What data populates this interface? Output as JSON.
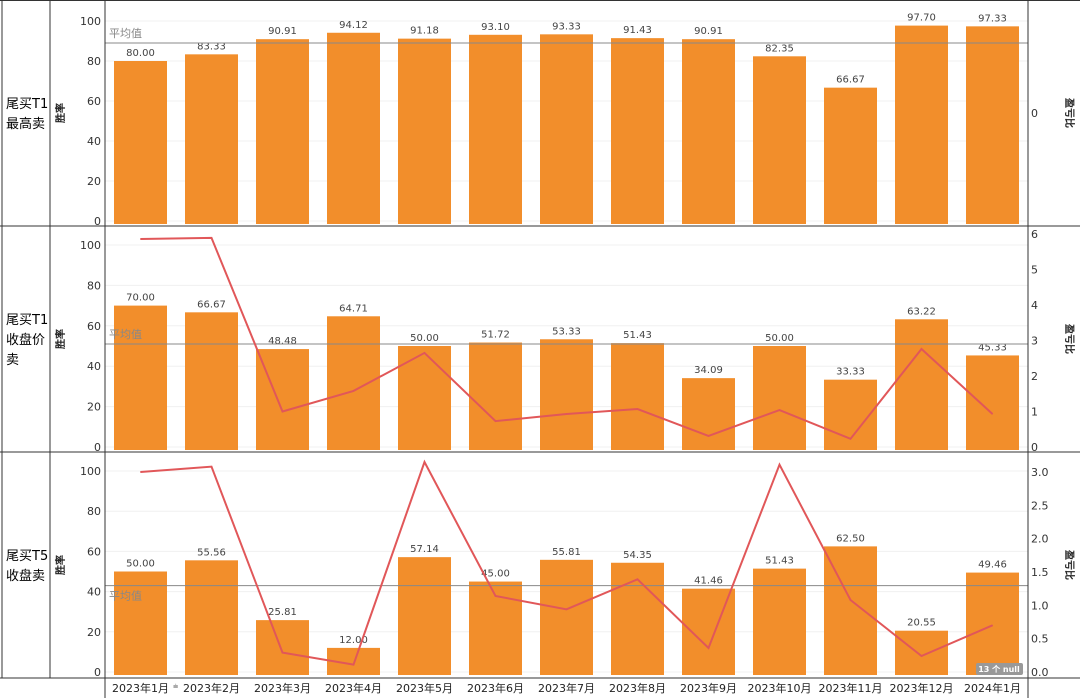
{
  "chart_data": [
    {
      "type": "bar",
      "row_label": "尾买T1最高卖",
      "row_label_lines": [
        "尾买T1",
        "最高卖"
      ],
      "ylabel": "胜率",
      "y2label": "盈亏比",
      "ylim": [
        0,
        100
      ],
      "yticks": [
        0,
        20,
        40,
        60,
        80,
        100
      ],
      "y2ticks": [
        "0"
      ],
      "reference_line": {
        "label": "平均值",
        "value": 89
      },
      "bar_values": [
        80.0,
        83.33,
        90.91,
        94.12,
        91.18,
        93.1,
        93.33,
        91.43,
        90.91,
        82.35,
        66.67,
        97.7,
        97.33
      ],
      "line_values": null
    },
    {
      "type": "bar",
      "row_label": "尾买T1收盘价卖",
      "row_label_lines": [
        "尾买T1",
        "收盘价",
        "卖"
      ],
      "ylabel": "胜率",
      "y2label": "盈亏比",
      "ylim": [
        0,
        105
      ],
      "y2lim": [
        0,
        6
      ],
      "yticks": [
        0,
        20,
        40,
        60,
        80,
        100
      ],
      "y2ticks": [
        "0",
        "1",
        "2",
        "3",
        "4",
        "5",
        "6"
      ],
      "reference_line": {
        "label": "平均值",
        "value": 51
      },
      "bar_values": [
        70.0,
        66.67,
        48.48,
        64.71,
        50.0,
        51.72,
        53.33,
        51.43,
        34.09,
        50.0,
        33.33,
        63.22,
        45.33
      ],
      "line_values": [
        5.86,
        5.89,
        1.0,
        1.58,
        2.65,
        0.73,
        0.93,
        1.07,
        0.31,
        1.04,
        0.23,
        2.76,
        0.93
      ]
    },
    {
      "type": "bar",
      "row_label": "尾买T5收盘卖",
      "row_label_lines": [
        "尾买T5",
        "收盘卖"
      ],
      "ylabel": "胜率",
      "y2label": "盈亏比",
      "ylim": [
        0,
        105
      ],
      "y2lim": [
        0,
        3.15
      ],
      "yticks": [
        0,
        20,
        40,
        60,
        80,
        100
      ],
      "y2ticks": [
        "0.0",
        "0.5",
        "1.0",
        "1.5",
        "2.0",
        "2.5",
        "3.0"
      ],
      "reference_line": {
        "label": "平均值",
        "value": 43
      },
      "bar_values": [
        50.0,
        55.56,
        25.81,
        12.0,
        57.14,
        45.0,
        55.81,
        54.35,
        41.46,
        51.43,
        62.5,
        20.55,
        49.46
      ],
      "line_values": [
        3.0,
        3.08,
        0.29,
        0.11,
        3.15,
        1.14,
        0.94,
        1.39,
        0.36,
        3.11,
        1.08,
        0.24,
        0.7
      ],
      "null_badge": "13 个 null"
    }
  ],
  "categories": [
    "2023年1月",
    "2023年2月",
    "2023年3月",
    "2023年4月",
    "2023年5月",
    "2023年6月",
    "2023年7月",
    "2023年8月",
    "2023年9月",
    "2023年10月",
    "2023年11月",
    "2023年12月",
    "2024年1月"
  ],
  "colors": {
    "bar": "#f28e2b",
    "line": "#e15759",
    "reference": "#999999"
  }
}
